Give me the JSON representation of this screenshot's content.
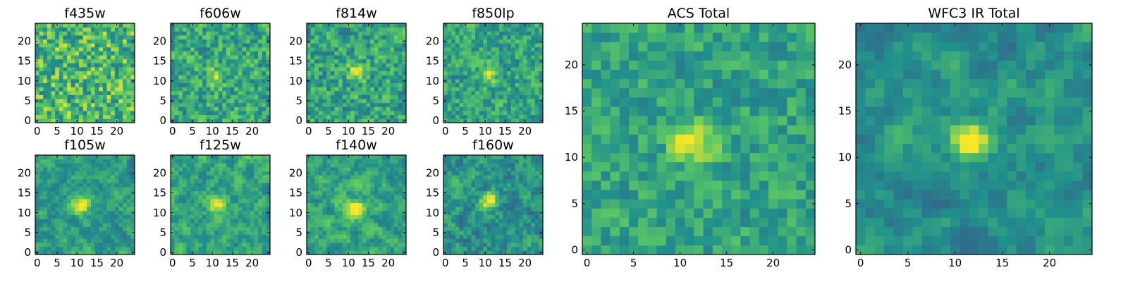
{
  "figure": {
    "colormap": [
      "#440154",
      "#3b528b",
      "#21908c",
      "#5ec962",
      "#fde725"
    ]
  },
  "chart_data": [
    {
      "type": "heatmap",
      "title": "f435w",
      "grid_size": 25,
      "xticks": [
        "0",
        "5",
        "10",
        "15",
        "20"
      ],
      "yticks": [
        "0",
        "5",
        "10",
        "15",
        "20"
      ],
      "xlim": [
        -0.5,
        24.5
      ],
      "ylim": [
        -0.5,
        24.5
      ],
      "source_center": [
        12,
        12
      ],
      "source_peak": 0.0,
      "noise": 0.26,
      "smooth": 0.0,
      "base": 0.68,
      "seed": 11
    },
    {
      "type": "heatmap",
      "title": "f606w",
      "grid_size": 25,
      "xticks": [
        "0",
        "5",
        "10",
        "15",
        "20"
      ],
      "yticks": [
        "0",
        "5",
        "10",
        "15",
        "20"
      ],
      "xlim": [
        -0.5,
        24.5
      ],
      "ylim": [
        -0.5,
        24.5
      ],
      "source_center": [
        11,
        11
      ],
      "source_peak": 0.25,
      "noise": 0.22,
      "smooth": 0.15,
      "base": 0.6,
      "seed": 23
    },
    {
      "type": "heatmap",
      "title": "f814w",
      "grid_size": 25,
      "xticks": [
        "0",
        "5",
        "10",
        "15",
        "20"
      ],
      "yticks": [
        "0",
        "5",
        "10",
        "15",
        "20"
      ],
      "xlim": [
        -0.5,
        24.5
      ],
      "ylim": [
        -0.5,
        24.5
      ],
      "source_center": [
        12,
        12
      ],
      "source_peak": 0.35,
      "noise": 0.22,
      "smooth": 0.15,
      "base": 0.58,
      "seed": 37
    },
    {
      "type": "heatmap",
      "title": "f850lp",
      "grid_size": 25,
      "xticks": [
        "0",
        "5",
        "10",
        "15",
        "20"
      ],
      "yticks": [
        "0",
        "5",
        "10",
        "15",
        "20"
      ],
      "xlim": [
        -0.5,
        24.5
      ],
      "ylim": [
        -0.5,
        24.5
      ],
      "source_center": [
        11,
        12
      ],
      "source_peak": 0.35,
      "noise": 0.2,
      "smooth": 0.2,
      "base": 0.58,
      "seed": 41
    },
    {
      "type": "heatmap",
      "title": "f105w",
      "grid_size": 25,
      "xticks": [
        "0",
        "5",
        "10",
        "15",
        "20"
      ],
      "yticks": [
        "0",
        "5",
        "10",
        "15",
        "20"
      ],
      "xlim": [
        -0.5,
        24.5
      ],
      "ylim": [
        -0.5,
        24.5
      ],
      "source_center": [
        11,
        12
      ],
      "source_peak": 0.45,
      "noise": 0.2,
      "smooth": 0.55,
      "base": 0.55,
      "seed": 53
    },
    {
      "type": "heatmap",
      "title": "f125w",
      "grid_size": 25,
      "xticks": [
        "0",
        "5",
        "10",
        "15",
        "20"
      ],
      "yticks": [
        "0",
        "5",
        "10",
        "15",
        "20"
      ],
      "xlim": [
        -0.5,
        24.5
      ],
      "ylim": [
        -0.5,
        24.5
      ],
      "source_center": [
        11,
        12
      ],
      "source_peak": 0.45,
      "noise": 0.22,
      "smooth": 0.55,
      "base": 0.57,
      "seed": 61
    },
    {
      "type": "heatmap",
      "title": "f140w",
      "grid_size": 25,
      "xticks": [
        "0",
        "5",
        "10",
        "15",
        "20"
      ],
      "yticks": [
        "0",
        "5",
        "10",
        "15",
        "20"
      ],
      "xlim": [
        -0.5,
        24.5
      ],
      "ylim": [
        -0.5,
        24.5
      ],
      "source_center": [
        12,
        11
      ],
      "source_peak": 0.45,
      "noise": 0.22,
      "smooth": 0.55,
      "base": 0.58,
      "seed": 71
    },
    {
      "type": "heatmap",
      "title": "f160w",
      "grid_size": 25,
      "xticks": [
        "0",
        "5",
        "10",
        "15",
        "20"
      ],
      "yticks": [
        "0",
        "5",
        "10",
        "15",
        "20"
      ],
      "xlim": [
        -0.5,
        24.5
      ],
      "ylim": [
        -0.5,
        24.5
      ],
      "source_center": [
        11,
        13
      ],
      "source_peak": 0.5,
      "noise": 0.22,
      "smooth": 0.45,
      "base": 0.5,
      "seed": 83
    },
    {
      "type": "heatmap",
      "title": "ACS Total",
      "grid_size": 25,
      "xticks": [
        "0",
        "5",
        "10",
        "15",
        "20"
      ],
      "yticks": [
        "0",
        "5",
        "10",
        "15",
        "20"
      ],
      "xlim": [
        -0.5,
        24.5
      ],
      "ylim": [
        -0.5,
        24.5
      ],
      "source_center": [
        11.5,
        11.5
      ],
      "source_peak": 0.45,
      "noise": 0.17,
      "smooth": 0.2,
      "base": 0.58,
      "seed": 97
    },
    {
      "type": "heatmap",
      "title": "WFC3 IR Total",
      "grid_size": 25,
      "xticks": [
        "0",
        "5",
        "10",
        "15",
        "20"
      ],
      "yticks": [
        "0",
        "5",
        "10",
        "15",
        "20"
      ],
      "xlim": [
        -0.5,
        24.5
      ],
      "ylim": [
        -0.5,
        24.5
      ],
      "source_center": [
        11.5,
        12
      ],
      "source_peak": 0.55,
      "noise": 0.18,
      "smooth": 0.6,
      "base": 0.5,
      "seed": 109
    }
  ]
}
